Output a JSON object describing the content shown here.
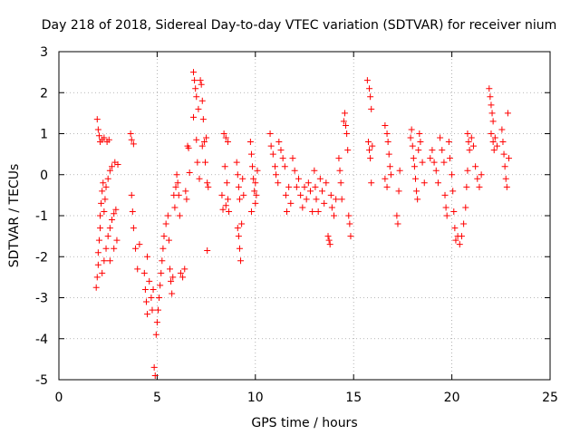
{
  "chart_data": {
    "type": "scatter",
    "title": "Day 218 of 2018, Sidereal Day-to-day VTEC variation (SDTVAR) for receiver nium",
    "xlabel": "GPS time / hours",
    "ylabel": "SDTVAR / TECUs",
    "xlim": [
      0,
      25
    ],
    "ylim": [
      -5,
      3
    ],
    "xticks": [
      0,
      5,
      10,
      15,
      20,
      25
    ],
    "yticks": [
      -5,
      -4,
      -3,
      -2,
      -1,
      0,
      1,
      2,
      3
    ],
    "xtick_labels": [
      "0",
      "5",
      "10",
      "15",
      "20",
      "25"
    ],
    "ytick_labels": [
      "-5",
      "-4",
      "-3",
      "-2",
      "-1",
      "0",
      "1",
      "2",
      "3"
    ],
    "grid": true,
    "marker": "+",
    "series": [
      {
        "name": "SDTVAR",
        "color": "#ff0000",
        "points": [
          [
            1.95,
            1.35
          ],
          [
            2.0,
            1.1
          ],
          [
            2.05,
            0.95
          ],
          [
            2.1,
            0.8
          ],
          [
            2.2,
            0.85
          ],
          [
            2.3,
            0.9
          ],
          [
            2.45,
            0.8
          ],
          [
            2.55,
            0.85
          ],
          [
            1.9,
            -2.75
          ],
          [
            1.95,
            -2.5
          ],
          [
            2.0,
            -2.2
          ],
          [
            2.0,
            -1.9
          ],
          [
            2.05,
            -1.6
          ],
          [
            2.1,
            -1.3
          ],
          [
            2.1,
            -1.0
          ],
          [
            2.15,
            -0.7
          ],
          [
            2.2,
            -0.4
          ],
          [
            2.25,
            -0.2
          ],
          [
            2.3,
            -0.9
          ],
          [
            2.35,
            -0.6
          ],
          [
            2.4,
            -0.3
          ],
          [
            2.5,
            -0.1
          ],
          [
            2.6,
            0.1
          ],
          [
            2.7,
            0.2
          ],
          [
            2.85,
            0.3
          ],
          [
            3.0,
            0.25
          ],
          [
            2.2,
            -2.4
          ],
          [
            2.3,
            -2.1
          ],
          [
            2.4,
            -1.8
          ],
          [
            2.5,
            -1.5
          ],
          [
            2.6,
            -1.3
          ],
          [
            2.7,
            -1.1
          ],
          [
            2.8,
            -0.95
          ],
          [
            2.9,
            -0.85
          ],
          [
            2.6,
            -2.1
          ],
          [
            2.8,
            -1.8
          ],
          [
            2.95,
            -1.6
          ],
          [
            3.65,
            1.0
          ],
          [
            3.7,
            0.85
          ],
          [
            3.8,
            0.75
          ],
          [
            3.7,
            -0.5
          ],
          [
            3.75,
            -0.9
          ],
          [
            3.8,
            -1.3
          ],
          [
            3.9,
            -1.8
          ],
          [
            4.0,
            -2.3
          ],
          [
            4.1,
            -1.7
          ],
          [
            4.35,
            -2.4
          ],
          [
            4.4,
            -2.8
          ],
          [
            4.45,
            -3.1
          ],
          [
            4.5,
            -3.4
          ],
          [
            4.5,
            -2.0
          ],
          [
            4.6,
            -2.6
          ],
          [
            4.7,
            -3.0
          ],
          [
            4.75,
            -3.3
          ],
          [
            4.8,
            -2.8
          ],
          [
            4.85,
            -4.7
          ],
          [
            4.9,
            -4.9
          ],
          [
            4.95,
            -3.9
          ],
          [
            5.0,
            -3.6
          ],
          [
            5.05,
            -3.3
          ],
          [
            5.1,
            -3.0
          ],
          [
            5.15,
            -2.7
          ],
          [
            5.2,
            -2.4
          ],
          [
            5.25,
            -2.1
          ],
          [
            5.3,
            -1.8
          ],
          [
            5.35,
            -1.5
          ],
          [
            5.45,
            -1.2
          ],
          [
            5.55,
            -1.0
          ],
          [
            5.6,
            -1.6
          ],
          [
            5.65,
            -2.3
          ],
          [
            5.7,
            -2.6
          ],
          [
            5.75,
            -2.9
          ],
          [
            5.8,
            -2.5
          ],
          [
            5.85,
            -0.5
          ],
          [
            5.9,
            -0.8
          ],
          [
            5.95,
            -0.3
          ],
          [
            6.0,
            0.0
          ],
          [
            6.05,
            -0.2
          ],
          [
            6.1,
            -0.5
          ],
          [
            6.15,
            -1.0
          ],
          [
            6.2,
            -2.4
          ],
          [
            6.3,
            -2.5
          ],
          [
            6.4,
            -2.3
          ],
          [
            6.45,
            -0.4
          ],
          [
            6.5,
            -0.6
          ],
          [
            6.55,
            0.7
          ],
          [
            6.6,
            0.65
          ],
          [
            6.65,
            0.05
          ],
          [
            6.85,
            2.5
          ],
          [
            6.9,
            2.3
          ],
          [
            6.95,
            2.1
          ],
          [
            7.0,
            1.9
          ],
          [
            6.85,
            1.4
          ],
          [
            7.1,
            1.6
          ],
          [
            7.2,
            2.3
          ],
          [
            7.25,
            2.2
          ],
          [
            7.3,
            1.8
          ],
          [
            7.35,
            1.35
          ],
          [
            7.0,
            0.85
          ],
          [
            7.05,
            0.3
          ],
          [
            7.15,
            -0.1
          ],
          [
            7.3,
            0.7
          ],
          [
            7.4,
            0.8
          ],
          [
            7.45,
            0.3
          ],
          [
            7.5,
            0.9
          ],
          [
            7.55,
            -0.2
          ],
          [
            7.6,
            -0.3
          ],
          [
            7.55,
            -1.85
          ],
          [
            8.4,
            1.0
          ],
          [
            8.5,
            0.9
          ],
          [
            8.6,
            0.8
          ],
          [
            8.45,
            0.2
          ],
          [
            8.55,
            -0.2
          ],
          [
            8.6,
            -0.6
          ],
          [
            8.65,
            -0.9
          ],
          [
            8.5,
            -0.75
          ],
          [
            8.3,
            -0.5
          ],
          [
            8.35,
            -0.85
          ],
          [
            9.05,
            0.3
          ],
          [
            9.1,
            0.0
          ],
          [
            9.15,
            -0.3
          ],
          [
            9.2,
            -0.6
          ],
          [
            9.1,
            -1.3
          ],
          [
            9.15,
            -1.5
          ],
          [
            9.2,
            -1.8
          ],
          [
            9.25,
            -2.1
          ],
          [
            9.3,
            -1.2
          ],
          [
            9.35,
            -0.1
          ],
          [
            9.4,
            -0.5
          ],
          [
            9.75,
            0.8
          ],
          [
            9.8,
            0.5
          ],
          [
            9.85,
            0.2
          ],
          [
            9.9,
            -0.1
          ],
          [
            9.95,
            -0.4
          ],
          [
            10.0,
            -0.7
          ],
          [
            9.8,
            -0.9
          ],
          [
            10.0,
            -0.2
          ],
          [
            10.05,
            -0.5
          ],
          [
            10.1,
            0.1
          ],
          [
            10.75,
            1.0
          ],
          [
            10.8,
            0.7
          ],
          [
            10.9,
            0.5
          ],
          [
            11.0,
            0.2
          ],
          [
            11.05,
            0.0
          ],
          [
            11.15,
            -0.2
          ],
          [
            11.2,
            0.8
          ],
          [
            11.3,
            0.6
          ],
          [
            11.4,
            0.4
          ],
          [
            11.5,
            0.2
          ],
          [
            11.55,
            -0.5
          ],
          [
            11.6,
            -0.9
          ],
          [
            11.7,
            -0.3
          ],
          [
            11.8,
            -0.7
          ],
          [
            11.9,
            0.4
          ],
          [
            12.0,
            0.1
          ],
          [
            12.1,
            -0.3
          ],
          [
            12.2,
            -0.1
          ],
          [
            12.3,
            -0.5
          ],
          [
            12.4,
            -0.8
          ],
          [
            12.5,
            -0.3
          ],
          [
            12.6,
            -0.6
          ],
          [
            12.7,
            -0.2
          ],
          [
            12.8,
            -0.4
          ],
          [
            12.9,
            -0.9
          ],
          [
            13.0,
            0.1
          ],
          [
            13.05,
            -0.3
          ],
          [
            13.1,
            -0.6
          ],
          [
            13.2,
            -0.9
          ],
          [
            13.3,
            -0.1
          ],
          [
            13.4,
            -0.4
          ],
          [
            13.5,
            -0.7
          ],
          [
            13.6,
            -0.2
          ],
          [
            13.7,
            -1.5
          ],
          [
            13.75,
            -1.6
          ],
          [
            13.8,
            -1.7
          ],
          [
            13.85,
            -0.5
          ],
          [
            13.9,
            -0.8
          ],
          [
            14.0,
            -1.0
          ],
          [
            14.1,
            -0.6
          ],
          [
            14.25,
            0.4
          ],
          [
            14.3,
            0.1
          ],
          [
            14.35,
            -0.2
          ],
          [
            14.4,
            -0.6
          ],
          [
            14.5,
            1.3
          ],
          [
            14.55,
            1.5
          ],
          [
            14.6,
            1.2
          ],
          [
            14.65,
            1.0
          ],
          [
            14.7,
            0.6
          ],
          [
            14.75,
            -1.0
          ],
          [
            14.8,
            -1.2
          ],
          [
            14.85,
            -1.5
          ],
          [
            15.7,
            2.3
          ],
          [
            15.8,
            2.1
          ],
          [
            15.85,
            1.9
          ],
          [
            15.9,
            1.6
          ],
          [
            15.75,
            0.8
          ],
          [
            15.8,
            0.6
          ],
          [
            15.85,
            0.4
          ],
          [
            15.9,
            -0.2
          ],
          [
            15.95,
            0.7
          ],
          [
            16.6,
            1.2
          ],
          [
            16.7,
            1.0
          ],
          [
            16.75,
            0.8
          ],
          [
            16.8,
            0.5
          ],
          [
            16.6,
            -0.1
          ],
          [
            16.7,
            -0.3
          ],
          [
            16.85,
            0.2
          ],
          [
            16.9,
            0.0
          ],
          [
            17.2,
            -1.0
          ],
          [
            17.25,
            -1.2
          ],
          [
            17.3,
            -0.4
          ],
          [
            17.35,
            0.1
          ],
          [
            17.9,
            0.9
          ],
          [
            17.95,
            1.1
          ],
          [
            18.0,
            0.7
          ],
          [
            18.05,
            0.4
          ],
          [
            18.1,
            0.2
          ],
          [
            18.15,
            -0.1
          ],
          [
            18.2,
            -0.4
          ],
          [
            18.25,
            -0.6
          ],
          [
            18.3,
            0.6
          ],
          [
            18.35,
            1.0
          ],
          [
            18.4,
            0.8
          ],
          [
            18.5,
            0.3
          ],
          [
            18.6,
            -0.2
          ],
          [
            18.9,
            0.4
          ],
          [
            19.0,
            0.6
          ],
          [
            19.1,
            0.3
          ],
          [
            19.2,
            0.1
          ],
          [
            19.3,
            -0.2
          ],
          [
            19.4,
            0.9
          ],
          [
            19.5,
            0.6
          ],
          [
            19.6,
            0.3
          ],
          [
            19.65,
            -0.5
          ],
          [
            19.7,
            -0.8
          ],
          [
            19.75,
            -1.0
          ],
          [
            19.85,
            0.8
          ],
          [
            19.9,
            0.4
          ],
          [
            20.0,
            0.0
          ],
          [
            20.05,
            -0.4
          ],
          [
            20.1,
            -0.9
          ],
          [
            20.15,
            -1.3
          ],
          [
            20.2,
            -1.6
          ],
          [
            20.3,
            -1.5
          ],
          [
            20.4,
            -1.7
          ],
          [
            20.5,
            -1.5
          ],
          [
            20.6,
            -1.2
          ],
          [
            20.7,
            -0.8
          ],
          [
            20.75,
            -0.3
          ],
          [
            20.8,
            0.1
          ],
          [
            20.8,
            1.0
          ],
          [
            20.85,
            0.8
          ],
          [
            20.9,
            0.6
          ],
          [
            21.0,
            0.9
          ],
          [
            21.1,
            0.7
          ],
          [
            21.2,
            0.2
          ],
          [
            21.3,
            -0.1
          ],
          [
            21.4,
            -0.3
          ],
          [
            21.5,
            0.0
          ],
          [
            21.9,
            2.1
          ],
          [
            21.95,
            1.9
          ],
          [
            22.0,
            1.7
          ],
          [
            22.05,
            1.5
          ],
          [
            22.1,
            1.3
          ],
          [
            22.0,
            1.0
          ],
          [
            22.1,
            0.8
          ],
          [
            22.15,
            0.6
          ],
          [
            22.2,
            0.9
          ],
          [
            22.3,
            0.7
          ],
          [
            22.55,
            1.1
          ],
          [
            22.6,
            0.8
          ],
          [
            22.65,
            0.5
          ],
          [
            22.7,
            0.2
          ],
          [
            22.75,
            -0.1
          ],
          [
            22.8,
            -0.3
          ],
          [
            22.85,
            1.5
          ],
          [
            22.9,
            0.4
          ]
        ]
      }
    ]
  }
}
